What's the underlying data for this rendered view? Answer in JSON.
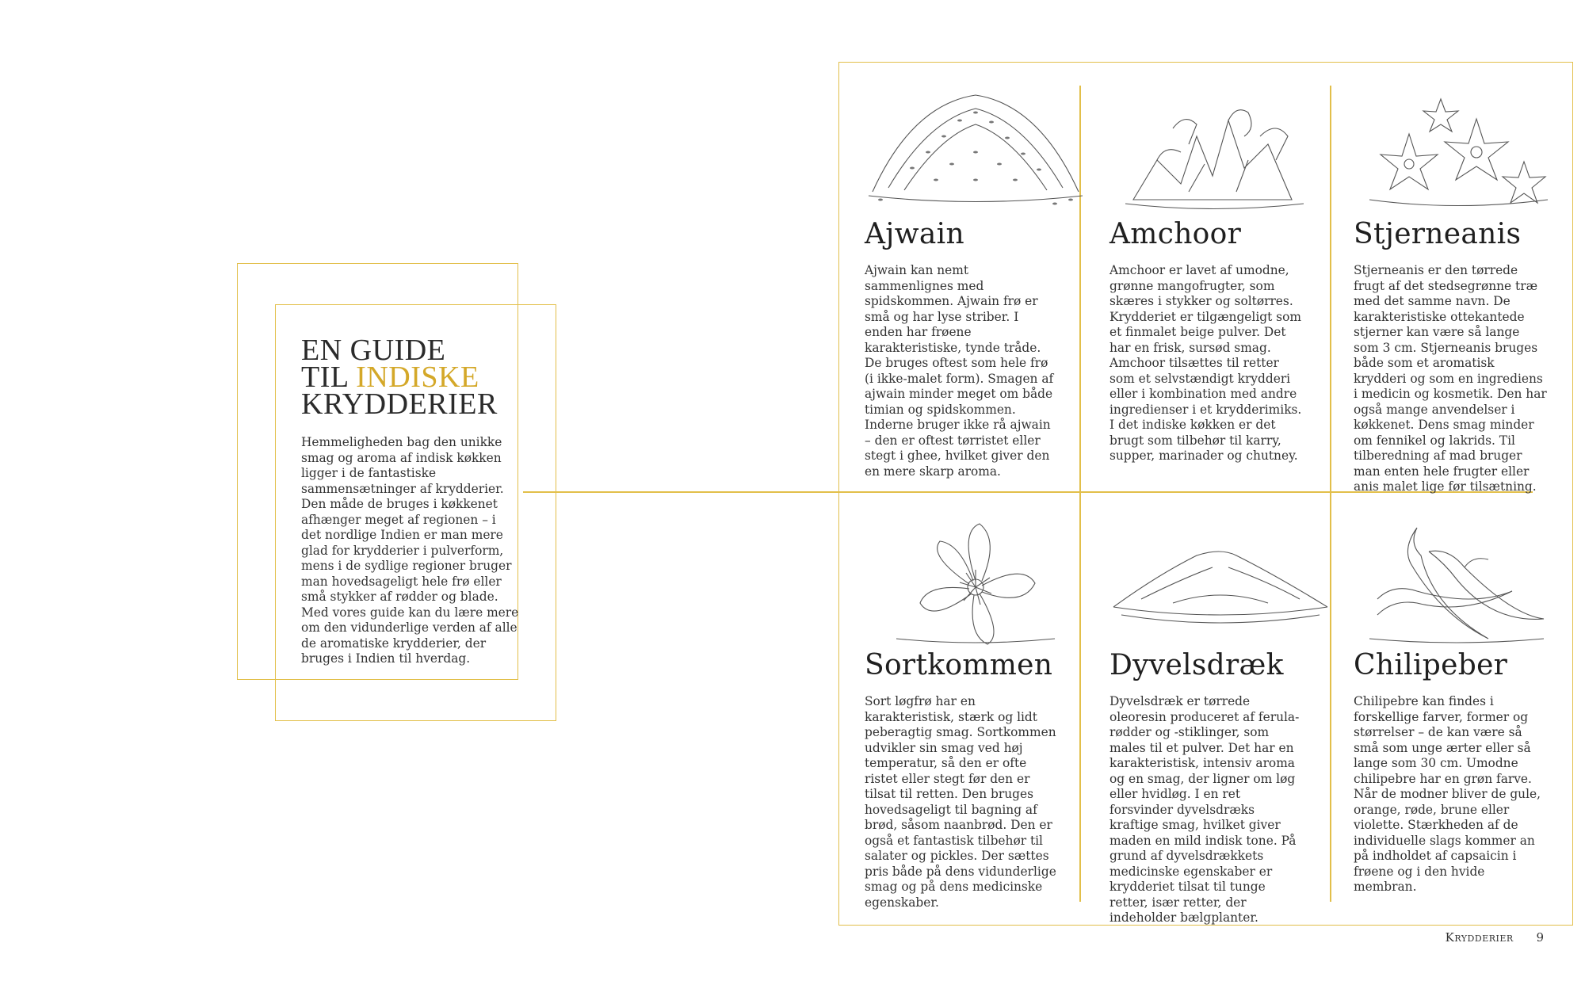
{
  "intro": {
    "title_line1": "EN GUIDE",
    "title_line2_prefix": "TIL ",
    "title_line2_highlight": "INDISKE",
    "title_line3": "KRYDDERIER",
    "body": "Hemmeligheden bag den unikke smag og aroma af indisk køkken ligger i de fantastiske sammensætninger af krydderier. Den måde de bruges i køkkenet afhænger meget af regionen – i det nordlige Indien er man mere glad for krydderier i pulverform, mens i de sydlige regioner bruger man hovedsageligt hele frø eller små stykker af rødder og blade. Med vores guide kan du lære mere om den vidunderlige verden af alle de aromatiske krydderier, der bruges i Indien til hverdag."
  },
  "spices": [
    {
      "name": "Ajwain",
      "icon": "seed-pile-illustration",
      "description": "Ajwain kan nemt sammenlignes med spidskommen. Ajwain frø er små og har lyse striber. I enden har frøene karakteristiske, tynde tråde. De bruges oftest som hele frø (i ikke-malet form). Smagen af ajwain minder meget om både timian og spidskommen. Inderne bruger ikke rå ajwain – den er oftest tørristet eller stegt i ghee, hvilket giver den en mere skarp aroma."
    },
    {
      "name": "Amchoor",
      "icon": "dried-mango-illustration",
      "description": "Amchoor er lavet af umodne, grønne mangofrugter, som skæres i stykker og soltørres. Krydderiet er tilgængeligt som et finmalet beige pulver. Det har en frisk, sursød smag. Amchoor tilsættes til retter som et selvstændigt krydderi eller i kombination med andre ingredienser i et krydderimiks. I det indiske køkken er det brugt som tilbehør til karry, supper, marinader og chutney."
    },
    {
      "name": "Stjerneanis",
      "icon": "star-anise-illustration",
      "description": "Stjerneanis er den tørrede frugt af det stedsegrønne træ med det samme navn. De karakteristiske ottekantede stjerner kan være så lange som 3 cm. Stjerneanis bruges både som et aromatisk krydderi og som en ingrediens i medicin og kosmetik. Den har også mange anvendelser i køkkenet. Dens smag minder om fennikel og lakrids. Til tilberedning af mad bruger man enten hele frugter eller anis malet lige før tilsætning."
    },
    {
      "name": "Sortkommen",
      "icon": "nigella-flower-illustration",
      "description": "Sort løgfrø har en karakteristisk, stærk og lidt peberagtig smag. Sortkommen udvikler sin smag ved høj temperatur, så den er ofte ristet eller stegt før den er tilsat til retten. Den bruges hovedsageligt til bagning af brød, såsom naanbrød. Den er også et fantastisk tilbehør til salater og pickles. Der sættes pris både på dens vidunderlige smag og på dens medicinske egenskaber."
    },
    {
      "name": "Dyvelsdræk",
      "icon": "powder-pile-illustration",
      "description": "Dyvelsdræk er tørrede oleoresin produceret af ferula-rødder og -stiklinger, som males til et pulver. Det har en karakteristisk, intensiv aroma og en smag, der ligner om løg eller hvidløg. I en ret forsvinder dyvelsdræks kraftige smag, hvilket giver maden en mild indisk tone. På grund af dyvelsdrækkets medicinske egenskaber er krydderiet tilsat til tunge retter, især retter, der indeholder bælgplanter."
    },
    {
      "name": "Chilipeber",
      "icon": "chili-peppers-illustration",
      "description": "Chilipebre kan findes i forskellige farver, former og størrelser – de kan være så små som unge ærter eller så lange som 30 cm. Umodne chilipebre har en grøn farve. Når de modner bliver de gule, orange, røde, brune eller violette. Stærkheden af de individuelle slags kommer an på indholdet af capsaicin i frøene og i den hvide membran."
    }
  ],
  "footer": {
    "section": "Krydderier",
    "page_number": "9"
  },
  "colors": {
    "accent_gold": "#e2bf4a",
    "title_gold": "#d4a829",
    "text": "#2b2b2b"
  }
}
